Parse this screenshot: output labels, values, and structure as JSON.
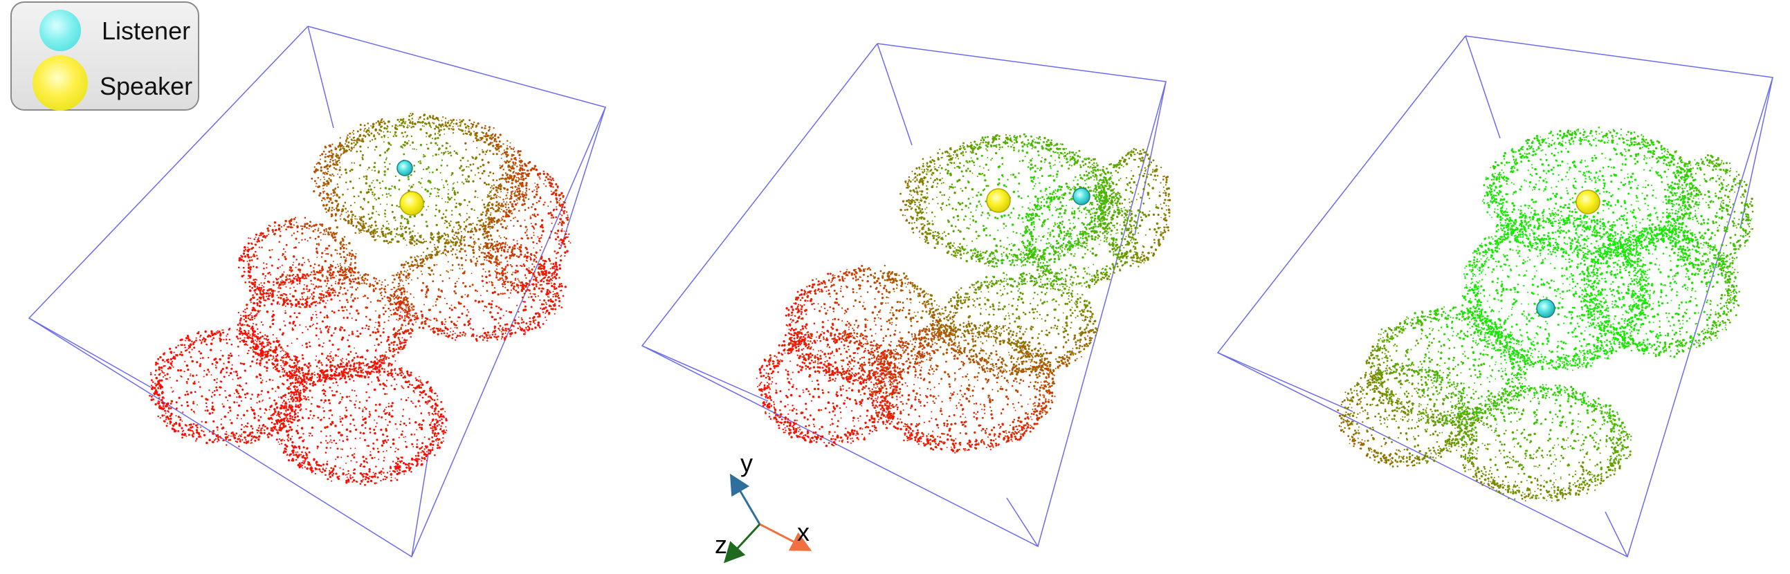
{
  "legend": {
    "items": [
      {
        "label": "Listener",
        "color": "#5ee8e8",
        "icon": "listener-sphere-icon"
      },
      {
        "label": "Speaker",
        "color": "#f2ec1a",
        "icon": "speaker-sphere-icon"
      }
    ]
  },
  "axes_gizmo": {
    "y_label": "y",
    "z_label": "z",
    "x_label": "x",
    "colors": {
      "x": "#f07040",
      "y": "#2e6f9e",
      "z": "#1f6a1f"
    }
  },
  "panels": [
    {
      "name": "panel-1",
      "listener_color": "#3fd8c0",
      "speaker_color": "#f2ec1a"
    },
    {
      "name": "panel-2",
      "listener_color": "#3fd8d8",
      "speaker_color": "#f2ec1a"
    },
    {
      "name": "panel-3",
      "listener_color": "#3fd8d8",
      "speaker_color": "#f2ec1a"
    }
  ],
  "colors": {
    "near": "#00ee00",
    "far": "#ff0000",
    "box": "#6666ee"
  }
}
